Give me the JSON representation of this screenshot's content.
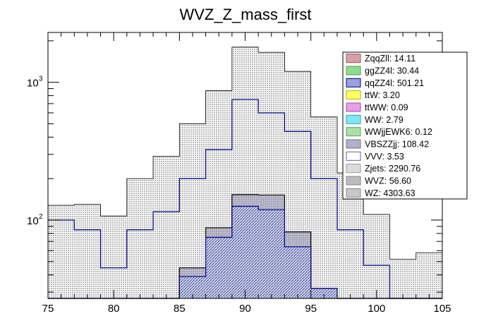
{
  "chart_data": {
    "type": "bar",
    "title": "WVZ_Z_mass_first",
    "xlabel": "",
    "ylabel": "",
    "x_bin_edges": [
      75,
      77,
      79,
      81,
      83,
      85,
      87,
      89,
      91,
      93,
      95,
      97,
      99,
      101,
      103,
      105
    ],
    "xlim": [
      75,
      105
    ],
    "ylim": [
      27,
      2300
    ],
    "yscale": "log",
    "x_ticks": [
      75,
      80,
      85,
      90,
      95,
      100,
      105
    ],
    "y_ticks": [
      {
        "value": 100,
        "label": "10",
        "exp": "2"
      },
      {
        "value": 1000,
        "label": "10",
        "exp": "3"
      }
    ],
    "legend_position": "top-right",
    "grid": false,
    "stack_totals": [
      128,
      130,
      107,
      200,
      290,
      500,
      870,
      1800,
      1650,
      1200,
      560,
      220,
      110,
      52,
      58
    ],
    "series_bands": [
      {
        "name": "WZ",
        "values": [
          100,
          85,
          45,
          85,
          115,
          200,
          325,
          750,
          600,
          440,
          200,
          85,
          47,
          26,
          27
        ]
      },
      {
        "name": "Zjets",
        "values": [
          0,
          0,
          0,
          0,
          0,
          45,
          88,
          153,
          152,
          82,
          0,
          0,
          0,
          0,
          0
        ]
      },
      {
        "name": "qqZZ4l",
        "values": [
          0,
          0,
          0,
          0,
          0,
          39,
          75,
          126,
          119,
          64,
          32,
          0,
          0,
          0,
          0
        ]
      }
    ],
    "legend": [
      {
        "label": "ZqqZll: 14.11",
        "color": "#d9a0a8",
        "border": "#a05060"
      },
      {
        "label": "ggZZ4l: 30.44",
        "color": "#8fdc8f",
        "border": "#4aa04a"
      },
      {
        "label": "qqZZ4l: 501.21",
        "color": "#9aa0e0",
        "border": "#000080"
      },
      {
        "label": "ttW: 3.20",
        "color": "#ffff66",
        "border": "#b0b000"
      },
      {
        "label": "ttWW: 0.09",
        "color": "#e6a0e6",
        "border": "#a050a0"
      },
      {
        "label": "WW: 2.79",
        "color": "#80e8f0",
        "border": "#30a0b0"
      },
      {
        "label": "WWjjEWK6: 0.12",
        "color": "#a8e0a8",
        "border": "#60a060"
      },
      {
        "label": "VBSZZjj: 108.42",
        "color": "#b0b0c8",
        "border": "#707090"
      },
      {
        "label": "VVV: 3.53",
        "color": "#ffffff",
        "border": "#6060a0"
      },
      {
        "label": "Zjets: 2290.76",
        "color": "#dcdcdc",
        "border": "#999999"
      },
      {
        "label": "WVZ: 56.60",
        "color": "#bdbdbd",
        "border": "#888888"
      },
      {
        "label": "WZ: 4303.63",
        "color": "#c8c8c8",
        "border": "#888888"
      }
    ]
  }
}
